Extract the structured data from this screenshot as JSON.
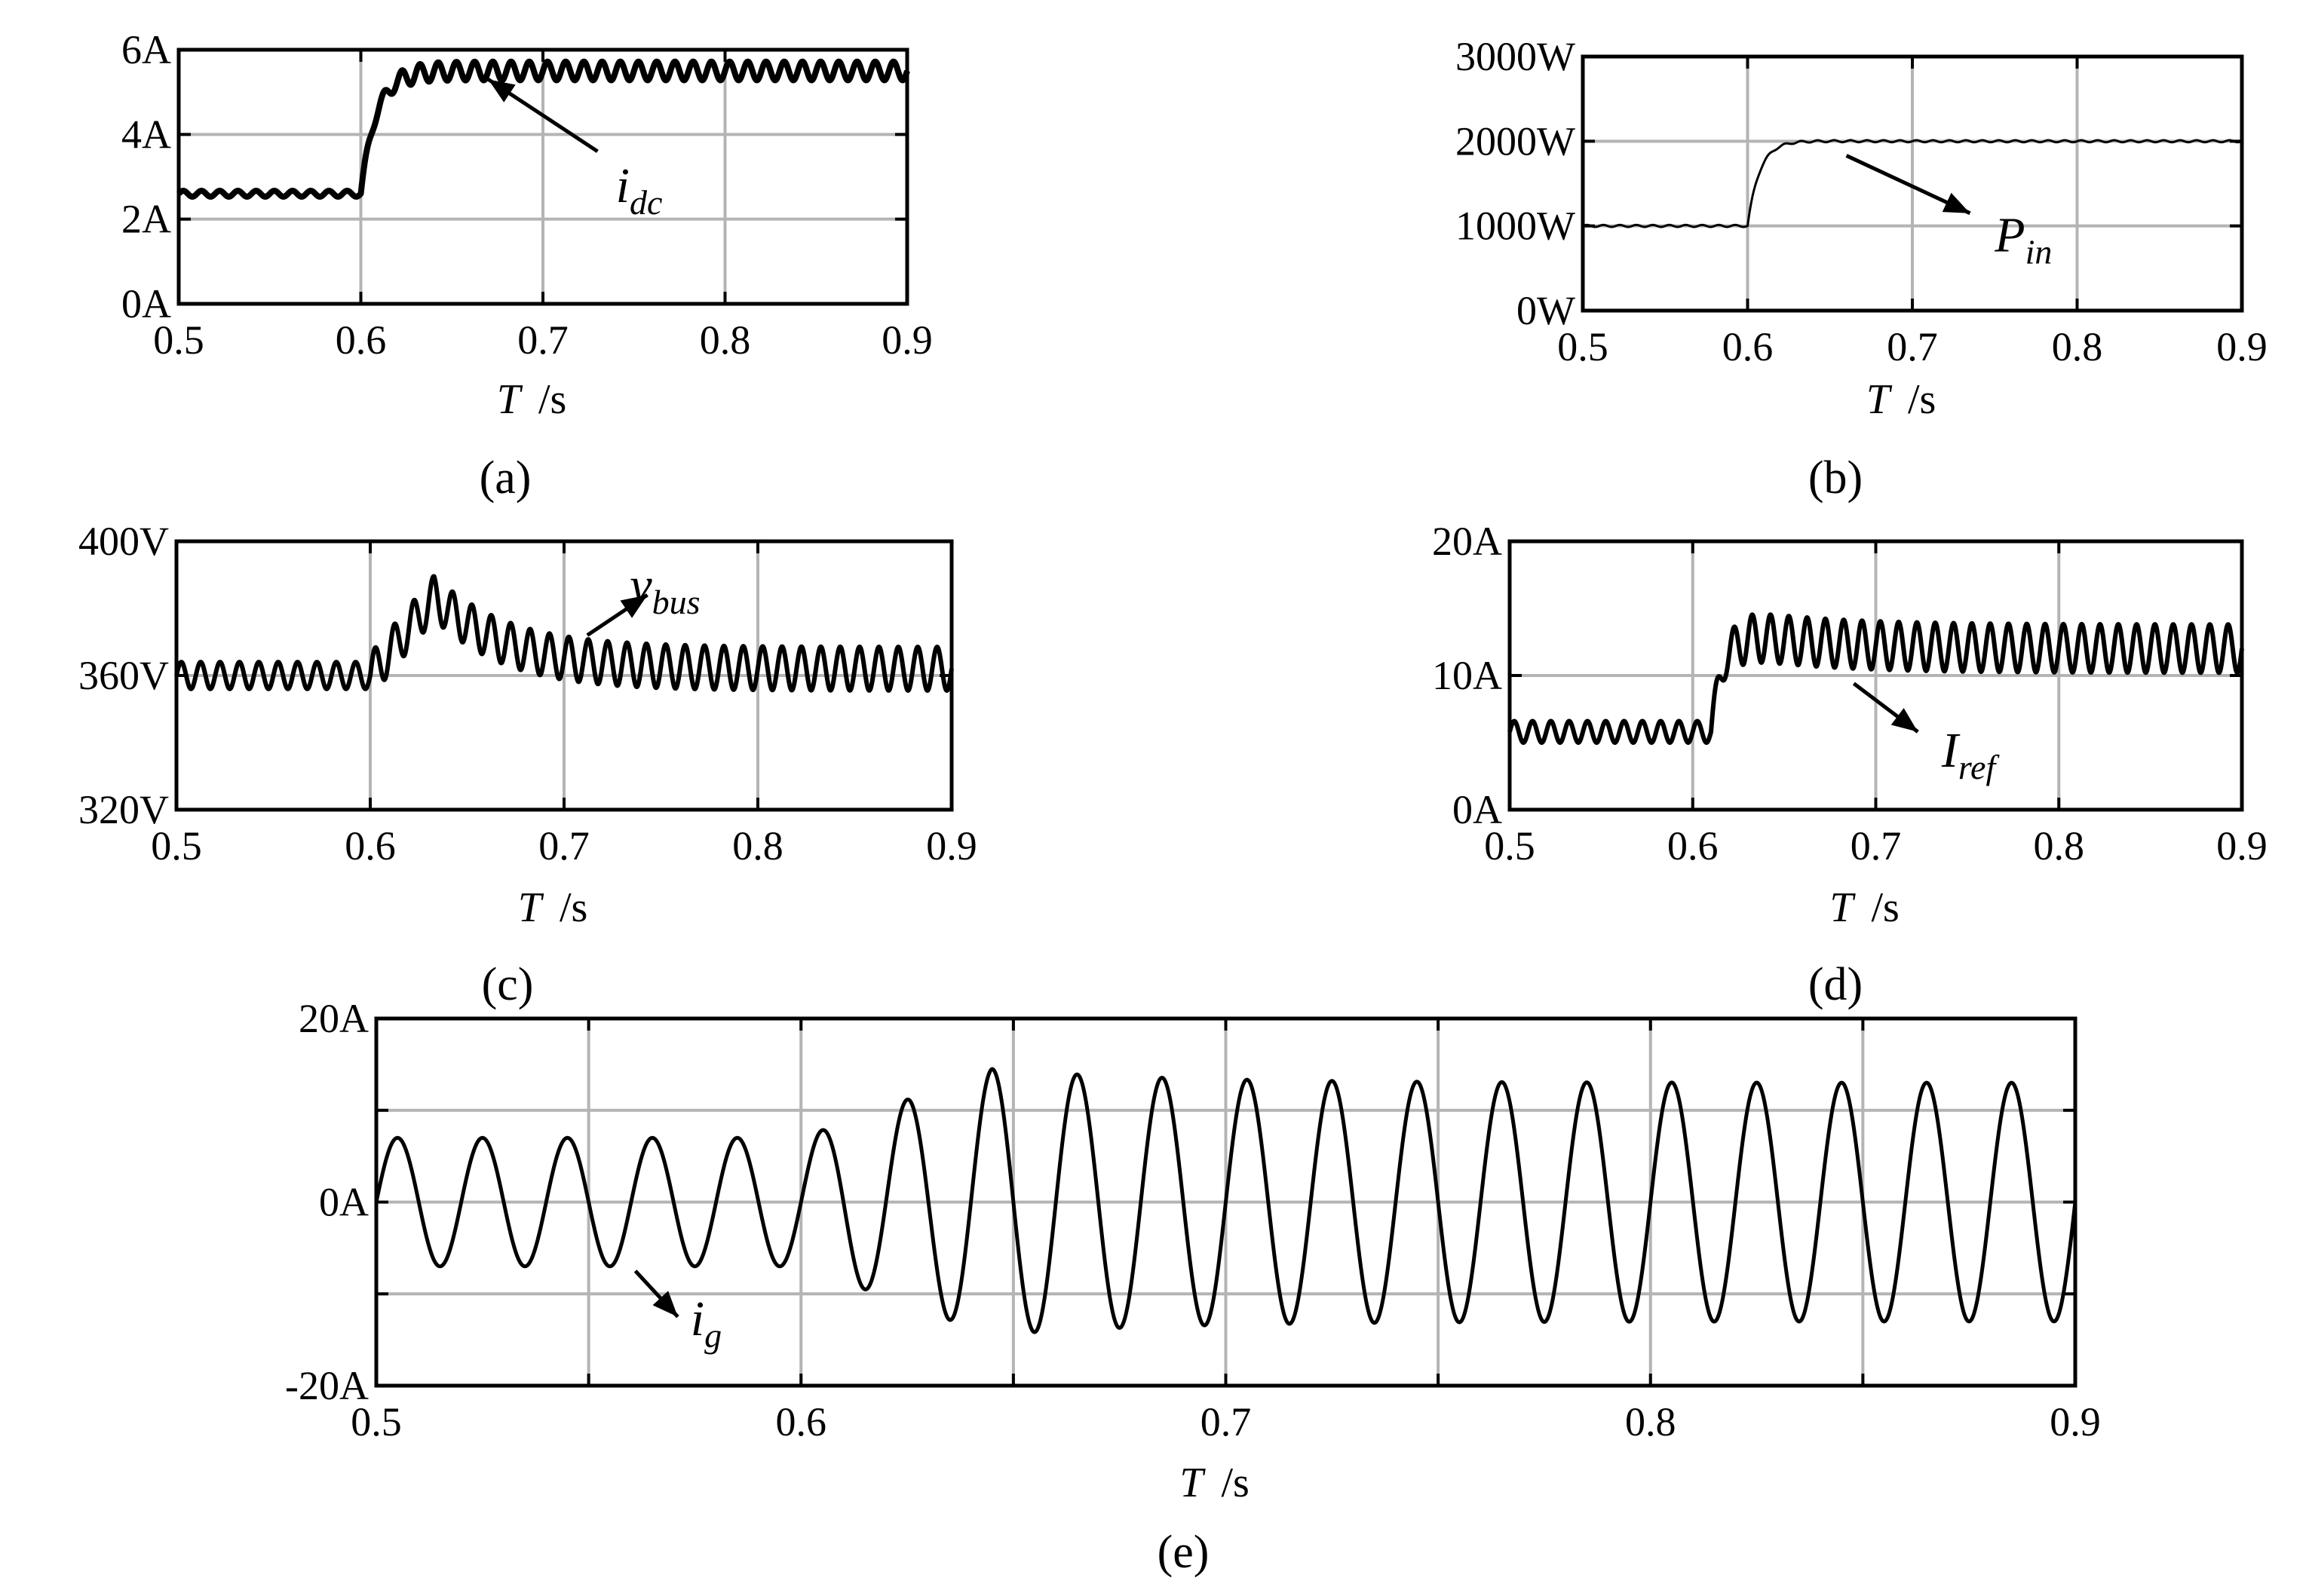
{
  "chart_data": [
    {
      "id": "a",
      "type": "line",
      "caption": "(a)",
      "xlabel": "T",
      "xunit": "/s",
      "xlim": [
        0.5,
        0.9
      ],
      "ylim": [
        0,
        6
      ],
      "xticks": [
        0.5,
        0.6,
        0.7,
        0.8,
        0.9
      ],
      "xtick_labels": [
        "0.5",
        "0.6",
        "0.7",
        "0.8",
        "0.9"
      ],
      "yticks": [
        0,
        2,
        4,
        6
      ],
      "ytick_labels": [
        "0A",
        "2A",
        "4A",
        "6A"
      ],
      "grid": true,
      "annotation": {
        "main": "i",
        "sub": "dc",
        "x": 0.74,
        "y": 2.4,
        "arrow_from": [
          0.73,
          3.6
        ],
        "arrow_to": [
          0.67,
          5.3
        ]
      },
      "series": [
        {
          "label_main": "i",
          "label_sub": "dc",
          "step_time": 0.6,
          "before": 2.6,
          "after": 5.5,
          "settle": 0.025,
          "overshoot": 0,
          "ripple_before": 0.07,
          "ripple_after": 0.22,
          "ripple_freq": 100,
          "stroke_width": 8
        }
      ]
    },
    {
      "id": "b",
      "type": "line",
      "caption": "(b)",
      "xlabel": "T",
      "xunit": "/s",
      "xlim": [
        0.5,
        0.9
      ],
      "ylim": [
        0,
        3000
      ],
      "xticks": [
        0.5,
        0.6,
        0.7,
        0.8,
        0.9
      ],
      "xtick_labels": [
        "0.5",
        "0.6",
        "0.7",
        "0.8",
        "0.9"
      ],
      "yticks": [
        0,
        1000,
        2000,
        3000
      ],
      "ytick_labels": [
        "0W",
        "1000W",
        "2000W",
        "3000W"
      ],
      "grid": true,
      "annotation": {
        "main": "P",
        "sub": "in",
        "x": 0.75,
        "y": 700,
        "arrow_from": [
          0.66,
          1830
        ],
        "arrow_to": [
          0.735,
          1150
        ]
      },
      "series": [
        {
          "label_main": "P",
          "label_sub": "in",
          "step_time": 0.6,
          "before": 1000,
          "after": 2000,
          "settle": 0.022,
          "overshoot": 20,
          "ripple_before": 12,
          "ripple_after": 12,
          "ripple_freq": 100,
          "stroke_width": 3
        }
      ]
    },
    {
      "id": "c",
      "type": "line",
      "caption": "(c)",
      "xlabel": "T",
      "xunit": "/s",
      "xlim": [
        0.5,
        0.9
      ],
      "ylim": [
        320,
        400
      ],
      "xticks": [
        0.5,
        0.6,
        0.7,
        0.8,
        0.9
      ],
      "xtick_labels": [
        "0.5",
        "0.6",
        "0.7",
        "0.8",
        "0.9"
      ],
      "yticks": [
        320,
        360,
        400
      ],
      "ytick_labels": [
        "320V",
        "360V",
        "400V"
      ],
      "grid": true,
      "annotation": {
        "main": "v",
        "sub": "bus",
        "x": 0.734,
        "y": 382,
        "arrow_from": [
          0.712,
          372
        ],
        "arrow_to": [
          0.743,
          384
        ]
      },
      "series": [
        {
          "label_main": "v",
          "label_sub": "bus",
          "step_time": 0.6,
          "before": 360,
          "after": 362,
          "bump": 22,
          "bump_peak": 0.633,
          "bump_decay": 0.035,
          "ripple_before": 4,
          "ripple_after": 6.5,
          "ripple_freq": 100,
          "stroke_width": 6
        }
      ]
    },
    {
      "id": "d",
      "type": "line",
      "caption": "(d)",
      "xlabel": "T",
      "xunit": "/s",
      "xlim": [
        0.5,
        0.9
      ],
      "ylim": [
        0,
        20
      ],
      "xticks": [
        0.5,
        0.6,
        0.7,
        0.8,
        0.9
      ],
      "xtick_labels": [
        "0.5",
        "0.6",
        "0.7",
        "0.8",
        "0.9"
      ],
      "yticks": [
        0,
        10,
        20
      ],
      "ytick_labels": [
        "0A",
        "10A",
        "20A"
      ],
      "grid": true,
      "annotation": {
        "main": "I",
        "sub": "ref",
        "x": 0.736,
        "y": 3.2,
        "arrow_from": [
          0.688,
          9.4
        ],
        "arrow_to": [
          0.723,
          5.8
        ]
      },
      "series": [
        {
          "label_main": "I",
          "label_sub": "ref",
          "step_time": 0.61,
          "before": 5.8,
          "after": 12.0,
          "settle": 0.018,
          "overshoot": 1.5,
          "overshoot_decay": 0.05,
          "ripple_before": 0.8,
          "ripple_after": 1.8,
          "ripple_freq": 100,
          "stroke_width": 6
        }
      ]
    },
    {
      "id": "e",
      "type": "line",
      "caption": "(e)",
      "xlabel": "T",
      "xunit": "/s",
      "xlim": [
        0.5,
        0.9
      ],
      "ylim": [
        -20,
        20
      ],
      "xticks": [
        0.5,
        0.6,
        0.7,
        0.8,
        0.9
      ],
      "xtick_labels": [
        "0.5",
        "0.6",
        "0.7",
        "0.8",
        "0.9"
      ],
      "minor_xticks": [
        0.55,
        0.65,
        0.75,
        0.85
      ],
      "yticks": [
        -20,
        0,
        20
      ],
      "ytick_labels": [
        "-20A",
        "0A",
        "20A"
      ],
      "minor_yticks": [
        -10,
        10
      ],
      "grid": true,
      "annotation": {
        "main": "i",
        "sub": "g",
        "x": 0.574,
        "y": -14.5,
        "arrow_from": [
          0.561,
          -7.5
        ],
        "arrow_to": [
          0.571,
          -12.5
        ]
      },
      "series": [
        {
          "label_main": "i",
          "label_sub": "g",
          "waveform": "sine",
          "frequency": 50,
          "amp_before": 7.0,
          "amp_after": 13.0,
          "amp_peak": 14.5,
          "ramp_start": 0.6,
          "ramp_end": 0.645,
          "decay": 0.04,
          "stroke_width": 5
        }
      ]
    }
  ]
}
